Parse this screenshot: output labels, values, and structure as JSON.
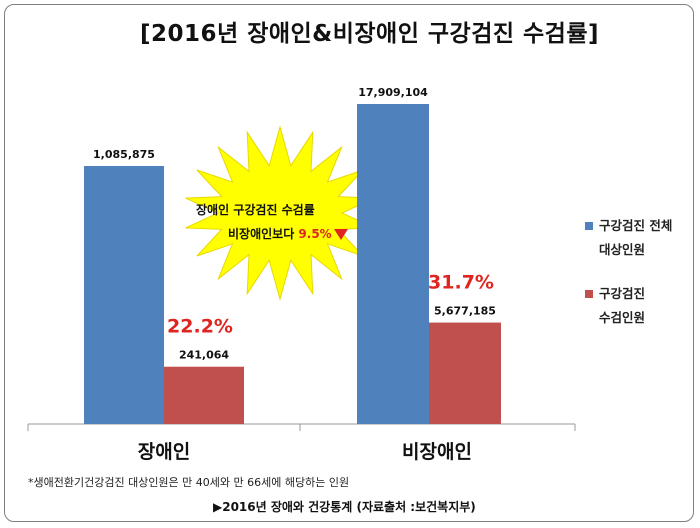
{
  "title": "[2016년 장애인&비장애인 구강검진 수검률]",
  "colors": {
    "blue": "#4f81bd",
    "red": "#c0504d",
    "accent": "#e0241f",
    "star": "#ffff00"
  },
  "chart_data": {
    "type": "bar",
    "categories": [
      "장애인",
      "비장애인"
    ],
    "series": [
      {
        "name": "구강검진 전체 대상인원",
        "values": [
          1085875,
          17909104
        ],
        "labels": [
          "1,085,875",
          "17,909,104"
        ]
      },
      {
        "name": "구강검진 수검인원",
        "values": [
          241064,
          5677185
        ],
        "labels": [
          "241,064",
          "5,677,185"
        ]
      }
    ],
    "rates": [
      "22.2%",
      "31.7%"
    ],
    "legend_position": "right"
  },
  "legend": {
    "item1_line1": "구강검진 전체",
    "item1_line2": "대상인원",
    "item2_line1": "구강검진",
    "item2_line2": "수검인원"
  },
  "callout": {
    "line1": "장애인 구강검진 수검률",
    "line2_text": "비장애인보다 ",
    "line2_pct": "9.5%"
  },
  "footnote": "*생애전환기건강검진 대상인원은 만 40세와 만 66세에 해당하는 인원",
  "source": "▶2016년 장애와 건강통계 (자료출처 :보건복지부)"
}
